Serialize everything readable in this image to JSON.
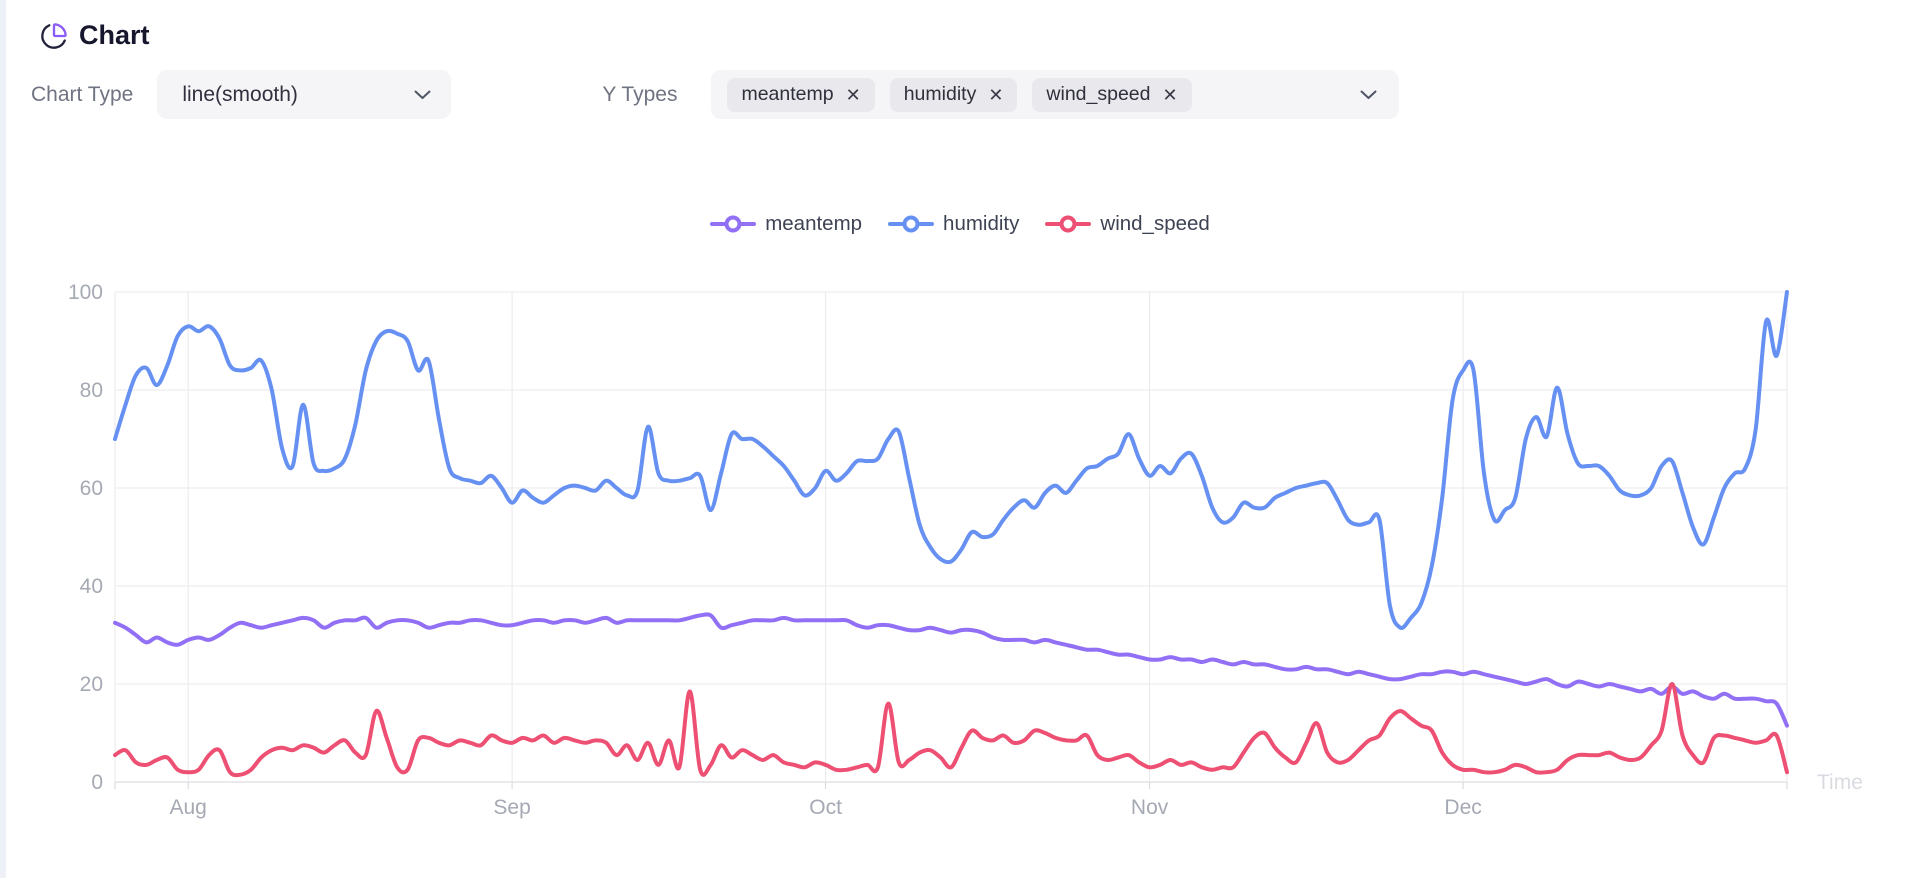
{
  "app": {
    "title": "Chart"
  },
  "icons": {
    "pie_icon_color": "#23233c",
    "pie_slice_color": "#8b5cf6",
    "chevron_color": "#4f5564",
    "remove_glyph": "✕"
  },
  "controls": {
    "chart_type_label": "Chart Type",
    "chart_type_value": "line(smooth)",
    "y_types_label": "Y Types",
    "y_type_tags": [
      "meantemp",
      "humidity",
      "wind_speed"
    ]
  },
  "chart_style": {
    "grid_color": "#e9e9ed",
    "axis_color": "#d6d6db",
    "axis_label_color": "#a5a9b3",
    "time_label_color": "#d9dbe1"
  },
  "chart_data": {
    "type": "line",
    "smooth": true,
    "xlabel": "Time",
    "ylabel": "",
    "ylim": [
      0,
      100
    ],
    "y_ticks": [
      0,
      20,
      40,
      60,
      80,
      100
    ],
    "x_range_days": 160,
    "x_ticks": [
      {
        "label": "Aug",
        "day": 7
      },
      {
        "label": "Sep",
        "day": 38
      },
      {
        "label": "Oct",
        "day": 68
      },
      {
        "label": "Nov",
        "day": 99
      },
      {
        "label": "Dec",
        "day": 129
      }
    ],
    "legend_position": "top-center",
    "grid": true,
    "series": [
      {
        "name": "meantemp",
        "color": "#9270f5",
        "values": [
          32.5,
          31.5,
          30,
          28.5,
          29.5,
          28.5,
          28,
          29,
          29.5,
          29,
          30,
          31.5,
          32.5,
          32,
          31.5,
          32,
          32.5,
          33,
          33.5,
          33,
          31.5,
          32.5,
          33,
          33,
          33.5,
          31.5,
          32.5,
          33,
          33,
          32.5,
          31.5,
          32,
          32.5,
          32.5,
          33,
          33,
          32.5,
          32,
          32,
          32.5,
          33,
          33,
          32.5,
          33,
          33,
          32.5,
          33,
          33.5,
          32.5,
          33,
          33,
          33,
          33,
          33,
          33,
          33.5,
          34,
          34,
          31.5,
          32,
          32.5,
          33,
          33,
          33,
          33.5,
          33,
          33,
          33,
          33,
          33,
          33,
          32,
          31.5,
          32,
          32,
          31.5,
          31,
          31,
          31.5,
          31,
          30.5,
          31,
          31,
          30.5,
          29.5,
          29,
          29,
          29,
          28.5,
          29,
          28.5,
          28,
          27.5,
          27,
          27,
          26.5,
          26,
          26,
          25.5,
          25,
          25,
          25.5,
          25,
          25,
          24.5,
          25,
          24.5,
          24,
          24.5,
          24,
          24,
          23.5,
          23,
          23,
          23.5,
          23,
          23,
          22.5,
          22,
          22.5,
          22,
          21.5,
          21,
          21,
          21.5,
          22,
          22,
          22.5,
          22.5,
          22,
          22.5,
          22,
          21.5,
          21,
          20.5,
          20,
          20.5,
          21,
          20,
          19.5,
          20.5,
          20,
          19.5,
          20,
          19.5,
          19,
          18.5,
          19,
          18,
          19.5,
          18,
          18.5,
          17.5,
          17,
          18,
          17,
          17,
          17,
          16.5,
          16,
          11.5
        ]
      },
      {
        "name": "humidity",
        "color": "#6691f2",
        "values": [
          70,
          77,
          83,
          84.5,
          81,
          85,
          91,
          93,
          92,
          93,
          90.5,
          85,
          84,
          84.5,
          86,
          80,
          68,
          64.5,
          77,
          65,
          63.5,
          64,
          66,
          73,
          84,
          90,
          92,
          91.5,
          90,
          84,
          86,
          74,
          64,
          62,
          61.5,
          61,
          62.5,
          60,
          57,
          59.5,
          58,
          57,
          58.5,
          60,
          60.5,
          60,
          59.5,
          61.5,
          60,
          58.5,
          59.5,
          72.5,
          63,
          61.5,
          61.5,
          62,
          62.5,
          55.5,
          63,
          71,
          70,
          70,
          68.5,
          66.5,
          64.5,
          61.5,
          58.5,
          60,
          63.5,
          61.5,
          63,
          65.5,
          65.5,
          66,
          70,
          71.5,
          62,
          52.5,
          48,
          45.5,
          45,
          47.5,
          51,
          50,
          50.5,
          53.5,
          56,
          57.5,
          56,
          59,
          60.5,
          59,
          61.5,
          64,
          64.5,
          66,
          67,
          71,
          66,
          62.5,
          64.5,
          63,
          66,
          67,
          62.5,
          56,
          53,
          54,
          57,
          56,
          56,
          58,
          59,
          60,
          60.5,
          61,
          61,
          57.5,
          53.5,
          52.5,
          53,
          53.5,
          36,
          31.5,
          33.5,
          36.5,
          44,
          58,
          78,
          84,
          84,
          63,
          53.5,
          55.5,
          58,
          70,
          74.5,
          70.5,
          80.5,
          71,
          65,
          64.5,
          64.5,
          62.5,
          59.5,
          58.5,
          58.5,
          60,
          64.5,
          65.5,
          59,
          52,
          48.5,
          54,
          60,
          63,
          64,
          72,
          94,
          87,
          100
        ]
      },
      {
        "name": "wind_speed",
        "color": "#ed5072",
        "values": [
          5.5,
          6.5,
          4,
          3.5,
          4.5,
          5,
          2.5,
          2,
          2.5,
          5.5,
          6.5,
          2,
          1.5,
          2.5,
          5,
          6.5,
          7,
          6.5,
          7.5,
          7,
          6,
          7.5,
          8.5,
          6,
          5.5,
          14.5,
          9,
          3,
          2.5,
          8.5,
          9,
          8,
          7.5,
          8.5,
          8,
          7.5,
          9.5,
          8.5,
          8,
          9,
          8.5,
          9.5,
          8,
          9,
          8.5,
          8,
          8.5,
          8,
          5.5,
          7.5,
          4.5,
          8,
          3.5,
          8.5,
          3,
          18.5,
          2.5,
          3.5,
          7.5,
          5,
          6.5,
          5.5,
          4.5,
          5.5,
          4,
          3.5,
          3,
          4,
          3.5,
          2.5,
          2.5,
          3,
          3.5,
          3,
          16,
          4,
          4.5,
          6,
          6.5,
          5,
          3,
          7,
          10.5,
          9,
          8.5,
          9.5,
          8,
          8.5,
          10.5,
          10,
          9,
          8.5,
          8.5,
          9.5,
          5.5,
          4.5,
          5,
          5.5,
          4,
          3,
          3.5,
          4.5,
          3.5,
          4,
          3,
          2.5,
          3,
          3,
          6,
          9,
          10,
          7,
          5,
          4,
          8,
          12,
          6,
          4,
          4.5,
          6.5,
          8.5,
          9.5,
          13,
          14.5,
          13,
          11.5,
          10.5,
          6,
          3.5,
          2.5,
          2.5,
          2,
          2,
          2.5,
          3.5,
          3,
          2,
          2,
          2.5,
          4.5,
          5.5,
          5.5,
          5.5,
          6,
          5,
          4.5,
          5,
          7.5,
          10.5,
          20,
          9.5,
          5.5,
          4,
          9,
          9.5,
          9,
          8.5,
          8,
          8.5,
          9.5,
          2
        ]
      }
    ]
  }
}
